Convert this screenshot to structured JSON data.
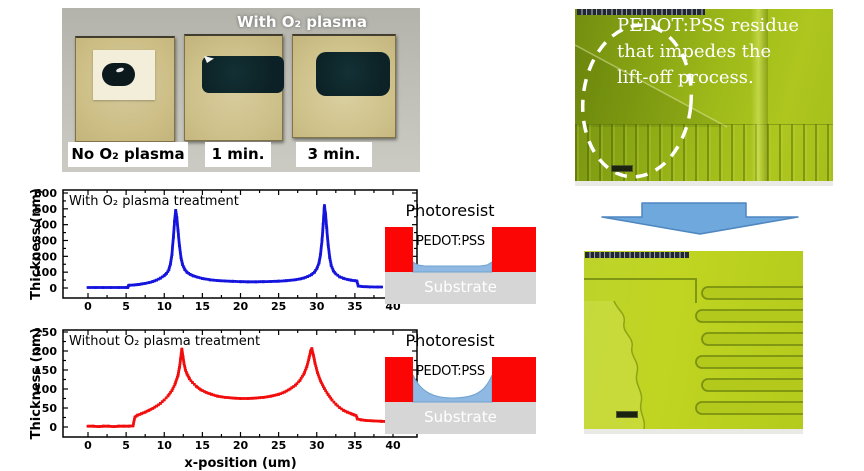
{
  "photo_panel": {
    "title": "With O₂ plasma",
    "samples": [
      {
        "label": "No O₂ plasma"
      },
      {
        "label": "1 min."
      },
      {
        "label": "3 min."
      }
    ]
  },
  "chart_data": [
    {
      "type": "scatter",
      "annotation": "With O₂ plasma treatment",
      "xlabel": "",
      "ylabel": "Thickness (nm)",
      "xlim": [
        0,
        40
      ],
      "ylim": [
        0,
        600
      ],
      "xticks": [
        0,
        5,
        10,
        15,
        20,
        25,
        30,
        35,
        40
      ],
      "yticks": [
        0,
        100,
        200,
        300,
        400,
        500,
        600
      ],
      "grid": false,
      "series": [
        {
          "name": "With O2 plasma treatment",
          "color": "#1414dd",
          "points": [
            [
              0,
              3
            ],
            [
              1,
              3
            ],
            [
              2,
              3
            ],
            [
              3,
              3
            ],
            [
              4,
              3
            ],
            [
              5,
              3
            ],
            [
              5.2,
              3
            ],
            [
              5.35,
              17
            ],
            [
              6,
              19
            ],
            [
              6.6,
              22
            ],
            [
              7,
              25
            ],
            [
              7.5,
              29
            ],
            [
              8,
              34
            ],
            [
              8.5,
              41
            ],
            [
              9,
              50
            ],
            [
              9.5,
              62
            ],
            [
              10,
              78
            ],
            [
              10.3,
              92
            ],
            [
              10.6,
              115
            ],
            [
              10.8,
              150
            ],
            [
              11,
              210
            ],
            [
              11.2,
              320
            ],
            [
              11.35,
              420
            ],
            [
              11.5,
              490
            ],
            [
              11.65,
              445
            ],
            [
              11.8,
              365
            ],
            [
              12,
              265
            ],
            [
              12.2,
              190
            ],
            [
              12.4,
              148
            ],
            [
              12.7,
              116
            ],
            [
              13,
              99
            ],
            [
              13.4,
              86
            ],
            [
              13.8,
              77
            ],
            [
              14.3,
              69
            ],
            [
              15,
              60
            ],
            [
              16,
              52
            ],
            [
              17,
              47
            ],
            [
              18,
              44
            ],
            [
              19,
              42
            ],
            [
              20,
              40
            ],
            [
              21,
              39
            ],
            [
              22,
              39
            ],
            [
              23,
              40
            ],
            [
              24,
              41
            ],
            [
              25,
              43
            ],
            [
              26,
              46
            ],
            [
              27,
              51
            ],
            [
              27.7,
              56
            ],
            [
              28.3,
              63
            ],
            [
              28.8,
              72
            ],
            [
              29.3,
              84
            ],
            [
              29.7,
              100
            ],
            [
              30,
              122
            ],
            [
              30.3,
              158
            ],
            [
              30.5,
              215
            ],
            [
              30.7,
              305
            ],
            [
              30.85,
              405
            ],
            [
              31,
              520
            ],
            [
              31.15,
              470
            ],
            [
              31.3,
              380
            ],
            [
              31.5,
              272
            ],
            [
              31.7,
              192
            ],
            [
              31.9,
              142
            ],
            [
              32.2,
              107
            ],
            [
              32.5,
              89
            ],
            [
              33,
              71
            ],
            [
              33.5,
              61
            ],
            [
              34,
              54
            ],
            [
              34.5,
              49
            ],
            [
              35,
              46
            ],
            [
              35.25,
              44
            ],
            [
              35.45,
              12
            ],
            [
              36,
              9
            ],
            [
              37,
              7
            ],
            [
              38,
              6
            ],
            [
              38.5,
              6
            ]
          ]
        }
      ]
    },
    {
      "type": "scatter",
      "annotation": "Without O₂ plasma treatment",
      "xlabel": "x-position (um)",
      "ylabel": "Thickness (nm)",
      "xlim": [
        0,
        40
      ],
      "ylim": [
        0,
        250
      ],
      "xticks": [
        0,
        5,
        10,
        15,
        20,
        25,
        30,
        35,
        40
      ],
      "yticks": [
        0,
        50,
        100,
        150,
        200,
        250
      ],
      "grid": false,
      "series": [
        {
          "name": "Without O2 plasma treatment",
          "color": "#f20d0d",
          "points": [
            [
              0,
              2
            ],
            [
              0.7,
              2
            ],
            [
              1.4,
              1
            ],
            [
              2,
              2
            ],
            [
              2.7,
              2
            ],
            [
              3.4,
              1
            ],
            [
              4,
              2
            ],
            [
              4.7,
              2
            ],
            [
              5.4,
              2
            ],
            [
              5.9,
              3
            ],
            [
              6.15,
              26
            ],
            [
              6.5,
              31
            ],
            [
              7,
              35
            ],
            [
              7.5,
              39
            ],
            [
              8,
              44
            ],
            [
              8.5,
              49
            ],
            [
              9,
              55
            ],
            [
              9.5,
              62
            ],
            [
              10,
              71
            ],
            [
              10.5,
              82
            ],
            [
              11,
              96
            ],
            [
              11.4,
              112
            ],
            [
              11.8,
              136
            ],
            [
              12,
              157
            ],
            [
              12.15,
              180
            ],
            [
              12.3,
              205
            ],
            [
              12.45,
              186
            ],
            [
              12.6,
              166
            ],
            [
              12.8,
              149
            ],
            [
              13,
              139
            ],
            [
              13.3,
              127
            ],
            [
              13.7,
              117
            ],
            [
              14.2,
              107
            ],
            [
              14.8,
              98
            ],
            [
              15.5,
              91
            ],
            [
              16.2,
              86
            ],
            [
              17,
              81
            ],
            [
              18,
              78
            ],
            [
              19,
              76
            ],
            [
              20,
              75
            ],
            [
              21,
              75
            ],
            [
              22,
              76
            ],
            [
              23,
              78
            ],
            [
              24,
              81
            ],
            [
              25,
              86
            ],
            [
              25.8,
              92
            ],
            [
              26.5,
              100
            ],
            [
              27.2,
              110
            ],
            [
              27.8,
              123
            ],
            [
              28.3,
              139
            ],
            [
              28.7,
              159
            ],
            [
              29,
              182
            ],
            [
              29.2,
              200
            ],
            [
              29.35,
              206
            ],
            [
              29.55,
              190
            ],
            [
              29.8,
              166
            ],
            [
              30.1,
              143
            ],
            [
              30.5,
              121
            ],
            [
              31,
              101
            ],
            [
              31.5,
              85
            ],
            [
              32,
              71
            ],
            [
              32.5,
              60
            ],
            [
              33,
              51
            ],
            [
              33.5,
              44
            ],
            [
              34,
              39
            ],
            [
              34.5,
              35
            ],
            [
              34.9,
              32
            ],
            [
              35.15,
              30
            ],
            [
              35.35,
              21
            ],
            [
              35.8,
              19
            ],
            [
              36.5,
              17
            ],
            [
              37.5,
              16
            ],
            [
              38.5,
              15
            ],
            [
              39.5,
              14
            ],
            [
              40,
              14
            ]
          ]
        }
      ]
    }
  ],
  "schematic_labels": {
    "photoresist": "Photoresist",
    "pedot": "PEDOT:PSS",
    "substrate": "Substrate"
  },
  "micro_top": {
    "annotation_lines": [
      "PEDOT:PSS residue",
      "that impedes the",
      "lift-off process."
    ]
  },
  "colors": {
    "photoresist_red": "#fb0505",
    "pedot_blue": "#8fb8e2",
    "pedot_blue_edge": "#6fa3d0",
    "substrate_gray": "#d6d6d6",
    "arrow_blue": "#6fa8dc",
    "arrow_border": "#4e86c0",
    "blue_series": "#1414dd",
    "red_series": "#f20d0d",
    "micro_green_dark": "#7e9a12",
    "micro_green_bright": "#aec61e"
  }
}
